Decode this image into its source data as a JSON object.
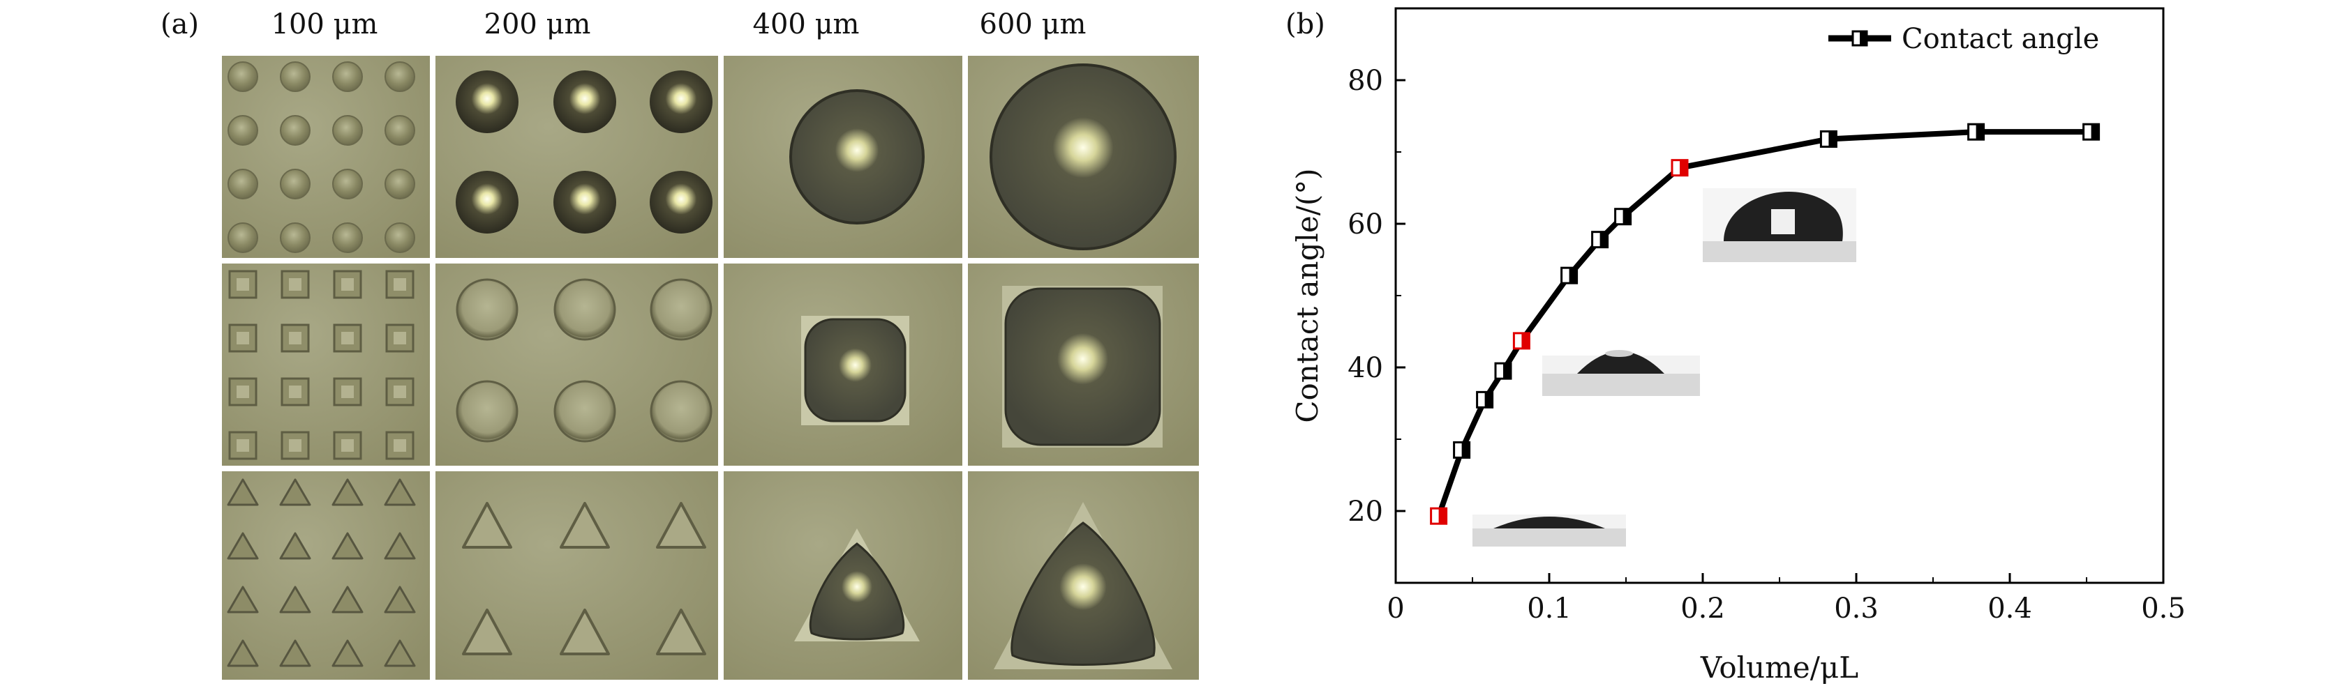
{
  "panel_a": {
    "label": "(a)",
    "columns": [
      "100 μm",
      "200 μm",
      "400 μm",
      "600 μm"
    ],
    "rows": [
      "circle",
      "square",
      "triangle"
    ]
  },
  "panel_b": {
    "label": "(b)"
  },
  "chart_data": {
    "type": "line",
    "title": "",
    "xlabel": "Volume/μL",
    "ylabel": "Contact angle/(°)",
    "xlim": [
      0,
      0.5
    ],
    "ylim": [
      10,
      90
    ],
    "x_ticks": [
      "0",
      "0.1",
      "0.2",
      "0.3",
      "0.4",
      "0.5"
    ],
    "y_ticks": [
      "20",
      "40",
      "60",
      "80"
    ],
    "legend": "top-right",
    "series": [
      {
        "name": "Contact angle",
        "color": "#000000",
        "x": [
          0.028,
          0.043,
          0.058,
          0.07,
          0.082,
          0.113,
          0.133,
          0.148,
          0.185,
          0.282,
          0.378,
          0.453
        ],
        "values": [
          19.3,
          28.5,
          35.5,
          39.5,
          43.7,
          52.8,
          57.8,
          61.0,
          67.8,
          71.8,
          72.8,
          72.8
        ],
        "highlight_indices": [
          0,
          4,
          8
        ],
        "highlight_color": "#e00000"
      }
    ]
  }
}
